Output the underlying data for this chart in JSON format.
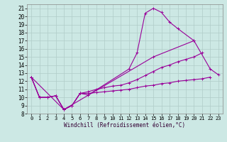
{
  "xlabel": "Windchill (Refroidissement éolien,°C)",
  "background_color": "#cce8e4",
  "grid_color": "#b0ccc8",
  "line_color": "#990099",
  "xlim": [
    -0.5,
    23.5
  ],
  "ylim": [
    8,
    21.5
  ],
  "xticks": [
    0,
    1,
    2,
    3,
    4,
    5,
    6,
    7,
    8,
    9,
    10,
    11,
    12,
    13,
    14,
    15,
    16,
    17,
    18,
    19,
    20,
    21,
    22,
    23
  ],
  "yticks": [
    8,
    9,
    10,
    11,
    12,
    13,
    14,
    15,
    16,
    17,
    18,
    19,
    20,
    21
  ],
  "series": [
    {
      "x": [
        0,
        1,
        2,
        3,
        4,
        5,
        6,
        7,
        12,
        13,
        14,
        15,
        16,
        17,
        18,
        20
      ],
      "y": [
        12.5,
        10.0,
        10.0,
        10.2,
        8.5,
        9.0,
        10.5,
        10.3,
        13.5,
        15.5,
        20.4,
        21.0,
        20.5,
        19.3,
        18.5,
        17.0
      ]
    },
    {
      "x": [
        0,
        1,
        2,
        3,
        4,
        5,
        6,
        7,
        8,
        9,
        10,
        11,
        12,
        13,
        14,
        15,
        16,
        17,
        18,
        19,
        20,
        21
      ],
      "y": [
        12.5,
        10.0,
        10.0,
        10.2,
        8.5,
        9.0,
        10.5,
        10.7,
        11.0,
        11.2,
        11.4,
        11.5,
        11.8,
        12.2,
        12.7,
        13.2,
        13.7,
        14.0,
        14.4,
        14.7,
        15.0,
        15.5
      ]
    },
    {
      "x": [
        0,
        1,
        2,
        3,
        4,
        5,
        6,
        7,
        8,
        9,
        10,
        11,
        12,
        13,
        14,
        15,
        16,
        17,
        18,
        19,
        20,
        21,
        22
      ],
      "y": [
        12.5,
        10.0,
        10.0,
        10.2,
        8.5,
        9.0,
        10.5,
        10.5,
        10.6,
        10.7,
        10.8,
        10.9,
        11.0,
        11.2,
        11.4,
        11.5,
        11.7,
        11.8,
        12.0,
        12.1,
        12.2,
        12.3,
        12.5
      ]
    },
    {
      "x": [
        0,
        4,
        15,
        20,
        22,
        23
      ],
      "y": [
        12.5,
        8.5,
        15.0,
        17.0,
        13.5,
        12.8
      ]
    }
  ]
}
